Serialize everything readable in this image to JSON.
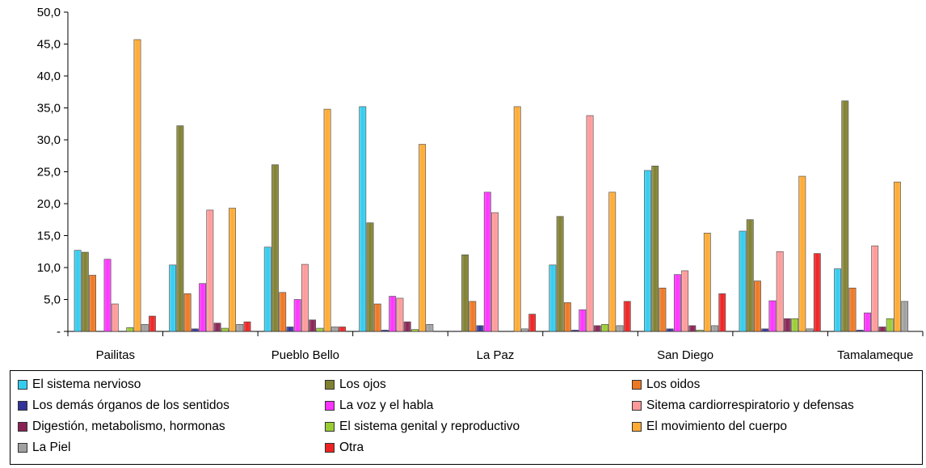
{
  "chart_data": {
    "type": "bar",
    "categories": [
      "Pailitas",
      "",
      "Pueblo Bello",
      "",
      "La Paz",
      "",
      "San Diego",
      "",
      "Tamalameque"
    ],
    "ylim": [
      0,
      50
    ],
    "yticks": [
      {
        "value": 0,
        "label": "-"
      },
      {
        "value": 5,
        "label": "5,0"
      },
      {
        "value": 10,
        "label": "10,0"
      },
      {
        "value": 15,
        "label": "15,0"
      },
      {
        "value": 20,
        "label": "20,0"
      },
      {
        "value": 25,
        "label": "25,0"
      },
      {
        "value": 30,
        "label": "30,0"
      },
      {
        "value": 35,
        "label": "35,0"
      },
      {
        "value": 40,
        "label": "40,0"
      },
      {
        "value": 45,
        "label": "45,0"
      },
      {
        "value": 50,
        "label": "50,0"
      }
    ],
    "grid": false,
    "legend_position": "bottom",
    "series": [
      {
        "name": "El sistema nervioso",
        "color": "#33ccee",
        "values": [
          12.7,
          10.4,
          13.2,
          35.2,
          0,
          10.4,
          25.2,
          15.7,
          9.8
        ]
      },
      {
        "name": "Los ojos",
        "color": "#808030",
        "values": [
          12.4,
          32.2,
          26.1,
          17.0,
          12.0,
          18.0,
          25.9,
          17.5,
          36.1
        ]
      },
      {
        "name": "Los oidos",
        "color": "#ee7722",
        "values": [
          8.8,
          5.9,
          6.1,
          4.3,
          4.7,
          4.5,
          6.8,
          7.9,
          6.8
        ]
      },
      {
        "name": "Los demás órganos de los sentidos",
        "color": "#333399",
        "values": [
          0,
          0.4,
          0.7,
          0.2,
          0.9,
          0.2,
          0.4,
          0.4,
          0.2
        ]
      },
      {
        "name": "La voz y el habla",
        "color": "#ff33ff",
        "values": [
          11.3,
          7.5,
          5.0,
          5.5,
          21.8,
          3.4,
          8.9,
          4.8,
          2.9
        ]
      },
      {
        "name": "Sitema cardiorrespiratorio y  defensas",
        "color": "#ff9999",
        "values": [
          4.3,
          19.0,
          10.5,
          5.2,
          18.6,
          33.8,
          9.5,
          12.5,
          13.4
        ]
      },
      {
        "name": "Digestión, metabolismo,  hormonas",
        "color": "#882255",
        "values": [
          0,
          1.3,
          1.8,
          1.5,
          0,
          0.9,
          0.9,
          2.0,
          0.7
        ]
      },
      {
        "name": "El sistema genital y reproductivo",
        "color": "#99cc33",
        "values": [
          0.6,
          0.5,
          0.5,
          0.3,
          0,
          1.1,
          0.2,
          2.0,
          2.0
        ]
      },
      {
        "name": "El movimiento del cuerpo",
        "color": "#ffaa33",
        "values": [
          45.7,
          19.3,
          34.8,
          29.3,
          35.2,
          21.8,
          15.4,
          24.3,
          23.4
        ]
      },
      {
        "name": "La Piel",
        "color": "#a0a0a0",
        "values": [
          1.1,
          1.1,
          0.7,
          1.1,
          0.4,
          0.9,
          0.9,
          0.4,
          4.7
        ]
      },
      {
        "name": "Otra",
        "color": "#ee2222",
        "values": [
          2.4,
          1.5,
          0.7,
          0,
          2.7,
          4.7,
          5.9,
          12.2,
          0
        ]
      }
    ]
  }
}
